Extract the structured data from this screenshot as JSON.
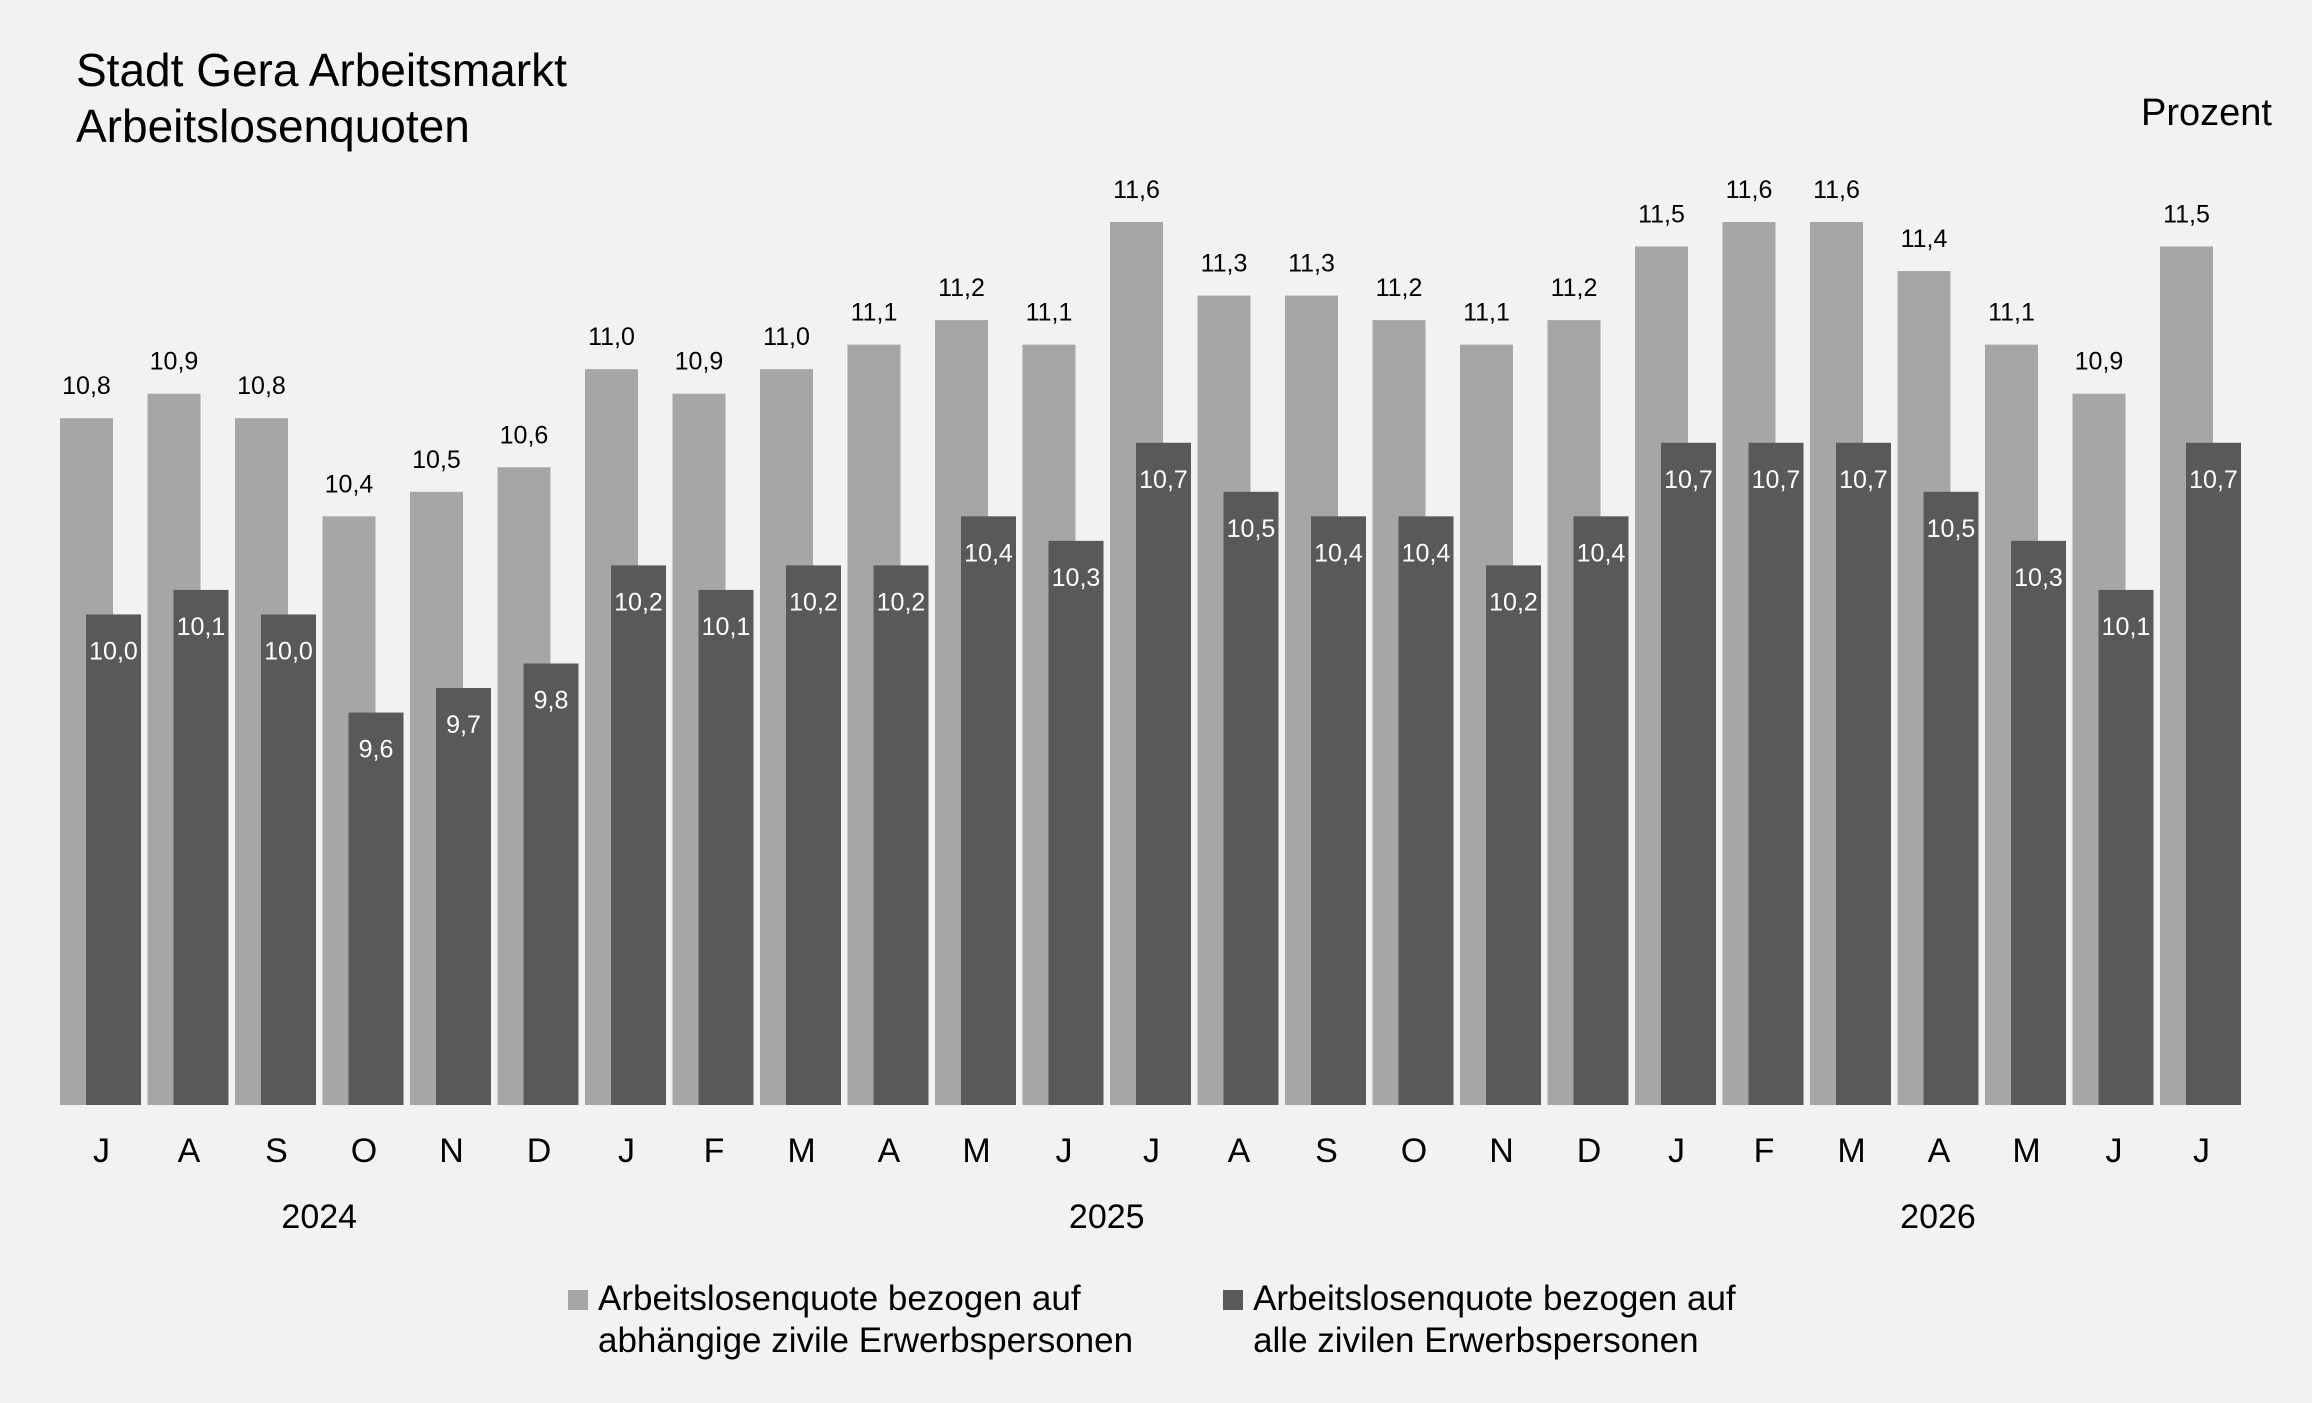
{
  "header": {
    "title_line1": "Stadt Gera Arbeitsmarkt",
    "title_line2": "Arbeitslosenquoten",
    "unit": "Prozent"
  },
  "legend": [
    {
      "line1": "Arbeitslosenquote bezogen auf",
      "line2": "abhängige zivile Erwerbspersonen",
      "color": "#a6a6a6"
    },
    {
      "line1": "Arbeitslosenquote bezogen auf",
      "line2": "alle zivilen Erwerbspersonen",
      "color": "#595959"
    }
  ],
  "chart_data": {
    "type": "bar",
    "categories": [
      "J",
      "A",
      "S",
      "O",
      "N",
      "D",
      "J",
      "F",
      "M",
      "A",
      "M",
      "J",
      "J",
      "A",
      "S",
      "O",
      "N",
      "D",
      "J",
      "F",
      "M",
      "A",
      "M",
      "J",
      "J"
    ],
    "year_labels": [
      {
        "label": "2024",
        "first_index": 0,
        "last_index": 5
      },
      {
        "label": "2025",
        "first_index": 6,
        "last_index": 17
      },
      {
        "label": "2026",
        "first_index": 18,
        "last_index": 24
      }
    ],
    "series": [
      {
        "name": "Arbeitslosenquote bezogen auf abhängige zivile Erwerbspersonen",
        "color": "#a6a6a6",
        "values": [
          10.8,
          10.9,
          10.8,
          10.4,
          10.5,
          10.6,
          11.0,
          10.9,
          11.0,
          11.1,
          11.2,
          11.1,
          11.6,
          11.3,
          11.3,
          11.2,
          11.1,
          11.2,
          11.5,
          11.6,
          11.6,
          11.4,
          11.1,
          10.9,
          11.5
        ]
      },
      {
        "name": "Arbeitslosenquote bezogen auf alle zivilen Erwerbspersonen",
        "color": "#595959",
        "values": [
          10.0,
          10.1,
          10.0,
          9.6,
          9.7,
          9.8,
          10.2,
          10.1,
          10.2,
          10.2,
          10.4,
          10.3,
          10.7,
          10.5,
          10.4,
          10.4,
          10.2,
          10.4,
          10.7,
          10.7,
          10.7,
          10.5,
          10.3,
          10.1,
          10.7
        ]
      }
    ],
    "ylim": [
      8.0,
      11.6
    ],
    "decimal_separator": ",",
    "grid": false,
    "legend_position": "bottom"
  }
}
